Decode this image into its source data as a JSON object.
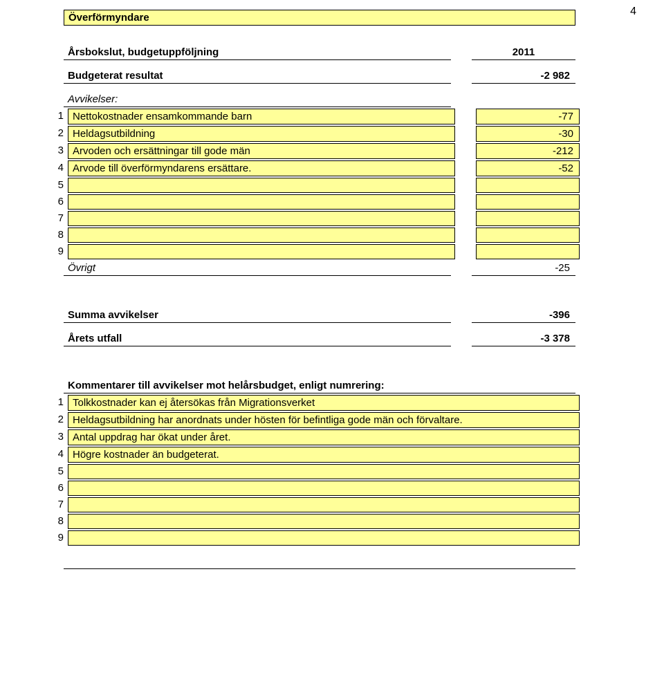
{
  "page_number": "4",
  "colors": {
    "cell_bg": "#ffff99",
    "border": "#000000",
    "text": "#000000",
    "page_bg": "#ffffff"
  },
  "title_box": "Överförmyndare",
  "heading_row": {
    "label": "Årsbokslut, budgetuppföljning",
    "value": "2011"
  },
  "budget_row": {
    "label": "Budgeterat resultat",
    "value": "-2 982"
  },
  "deviations_header": "Avvikelser:",
  "deviations": [
    {
      "n": "1",
      "label": "Nettokostnader ensamkommande barn",
      "value": "-77"
    },
    {
      "n": "2",
      "label": "Heldagsutbildning",
      "value": "-30"
    },
    {
      "n": "3",
      "label": "Arvoden och ersättningar till gode män",
      "value": "-212"
    },
    {
      "n": "4",
      "label": "Arvode till överförmyndarens ersättare.",
      "value": "-52"
    },
    {
      "n": "5",
      "label": "",
      "value": ""
    },
    {
      "n": "6",
      "label": "",
      "value": ""
    },
    {
      "n": "7",
      "label": "",
      "value": ""
    },
    {
      "n": "8",
      "label": "",
      "value": ""
    },
    {
      "n": "9",
      "label": "",
      "value": ""
    }
  ],
  "other_row": {
    "label": "Övrigt",
    "value": "-25"
  },
  "sum_row": {
    "label": "Summa avvikelser",
    "value": "-396"
  },
  "outcome_row": {
    "label": "Årets utfall",
    "value": "-3 378"
  },
  "comments_header": "Kommentarer till avvikelser mot helårsbudget, enligt numrering:",
  "comments": [
    {
      "n": "1",
      "text": "Tolkkostnader kan ej återsökas från Migrationsverket"
    },
    {
      "n": "2",
      "text": "Heldagsutbildning har anordnats under hösten för befintliga gode män och förvaltare."
    },
    {
      "n": "3",
      "text": "Antal uppdrag har ökat under året."
    },
    {
      "n": "4",
      "text": "Högre kostnader än budgeterat."
    },
    {
      "n": "5",
      "text": ""
    },
    {
      "n": "6",
      "text": ""
    },
    {
      "n": "7",
      "text": ""
    },
    {
      "n": "8",
      "text": ""
    },
    {
      "n": "9",
      "text": ""
    }
  ]
}
